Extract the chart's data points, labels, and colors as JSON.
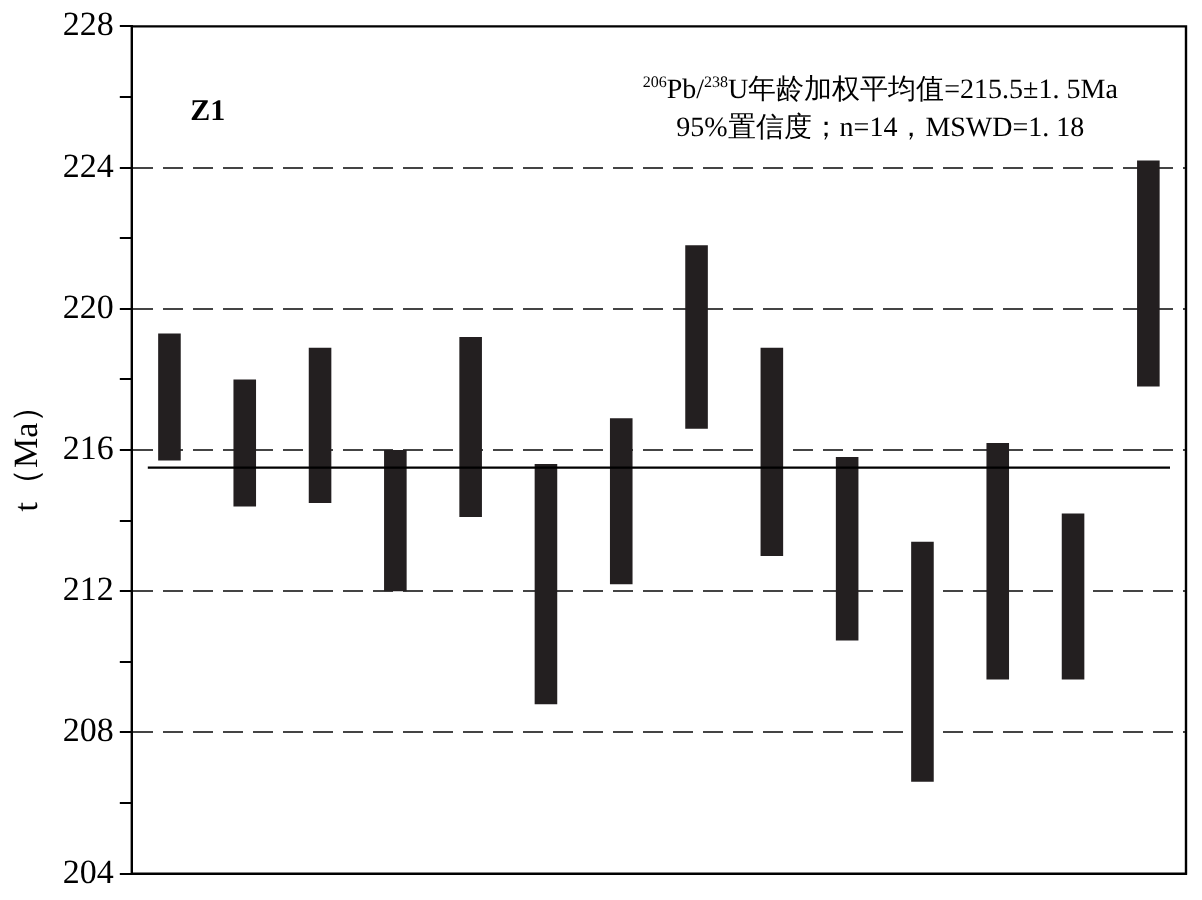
{
  "chart_data": {
    "type": "bar",
    "ylabel": "t（Ma）",
    "categories": [
      null,
      null,
      null,
      null,
      null,
      null,
      null,
      null,
      null,
      null,
      null,
      null,
      null,
      null
    ],
    "base": [
      215.7,
      214.4,
      214.5,
      212.0,
      214.1,
      208.8,
      212.2,
      216.6,
      213.0,
      210.6,
      206.6,
      209.5,
      209.5,
      217.8
    ],
    "values": [
      3.6,
      3.6,
      4.4,
      4.0,
      5.1,
      6.8,
      4.7,
      5.2,
      5.9,
      5.2,
      6.8,
      6.7,
      4.7,
      6.4
    ],
    "color": "#231f20",
    "ylim": [
      204,
      228
    ],
    "yticks": [
      204,
      {
        "value": 206,
        "label": null
      },
      208,
      {
        "value": 210,
        "label": null
      },
      212,
      {
        "value": 214,
        "label": null
      },
      216,
      {
        "value": 218,
        "label": null
      },
      220,
      {
        "value": 222,
        "label": null
      },
      224,
      {
        "value": 226,
        "label": null
      },
      228
    ],
    "grid": "y",
    "line_style": "dashed",
    "tick_labels": "y",
    "legend": false,
    "ref_lines": [
      {
        "axis": "y",
        "value": 215.5,
        "color": "#000000",
        "line_style": "solid"
      }
    ],
    "annotations": [
      "Z1",
      "$^{206}$Pb/$^{238}$U年龄加权平均值=215.5±1. 5Ma",
      "95%置信度；n=14，MSWD=1. 18"
    ]
  }
}
